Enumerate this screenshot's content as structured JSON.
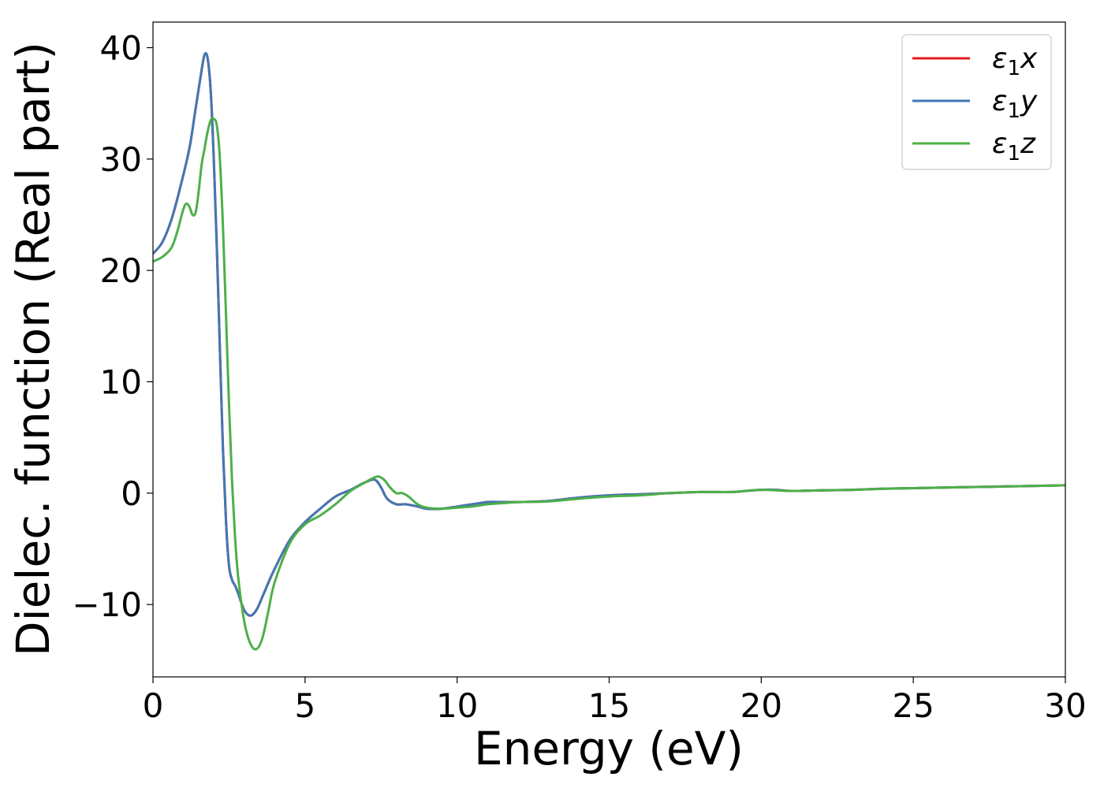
{
  "chart_data": {
    "type": "line",
    "title": "",
    "xlabel": "Energy (eV)",
    "ylabel": "Dielec. function (Real part)",
    "xlim": [
      0,
      30
    ],
    "ylim": [
      -16.5,
      42.3
    ],
    "xticks": [
      0,
      5,
      10,
      15,
      20,
      25,
      30
    ],
    "yticks": [
      -10,
      0,
      10,
      20,
      30,
      40
    ],
    "ytick_labels": [
      "−10",
      "0",
      "10",
      "20",
      "30",
      "40"
    ],
    "grid": false,
    "legend_position": "top-right",
    "series": [
      {
        "name": "ε1x",
        "legend_base": "ε",
        "legend_sub": "1",
        "legend_suffix": "x",
        "color": "#e41a1c",
        "x": [
          0,
          0.3,
          0.6,
          0.9,
          1.2,
          1.4,
          1.6,
          1.7,
          1.8,
          1.9,
          2.0,
          2.1,
          2.2,
          2.3,
          2.4,
          2.5,
          2.6,
          2.7,
          2.8,
          3.0,
          3.2,
          3.4,
          3.6,
          3.8,
          4.0,
          4.5,
          5.0,
          5.5,
          6.0,
          6.5,
          7.0,
          7.3,
          7.5,
          7.7,
          8.0,
          8.3,
          8.7,
          9.0,
          9.5,
          10.0,
          10.5,
          11.0,
          11.5,
          12.0,
          13.0,
          14.0,
          15.0,
          16.0,
          17.0,
          18.0,
          19.0,
          19.5,
          20.0,
          20.5,
          21.0,
          22.0,
          23.0,
          24.0,
          25.0,
          26.0,
          27.0,
          28.0,
          29.0,
          30.0
        ],
        "y": [
          21.5,
          22.5,
          24.5,
          27.5,
          31.0,
          34.5,
          38.0,
          39.4,
          39.0,
          36.0,
          30.0,
          22.0,
          13.0,
          4.0,
          -2.5,
          -6.5,
          -7.8,
          -8.3,
          -9.0,
          -10.5,
          -11.0,
          -10.5,
          -9.3,
          -8.0,
          -6.8,
          -4.2,
          -2.6,
          -1.4,
          -0.3,
          0.3,
          1.0,
          1.2,
          0.5,
          -0.5,
          -1.0,
          -1.0,
          -1.2,
          -1.4,
          -1.4,
          -1.2,
          -1.0,
          -0.8,
          -0.8,
          -0.8,
          -0.7,
          -0.4,
          -0.2,
          -0.1,
          0.0,
          0.1,
          0.1,
          0.2,
          0.3,
          0.3,
          0.2,
          0.25,
          0.3,
          0.4,
          0.45,
          0.5,
          0.55,
          0.6,
          0.65,
          0.7
        ]
      },
      {
        "name": "ε1y",
        "legend_base": "ε",
        "legend_sub": "1",
        "legend_suffix": "y",
        "color": "#4277b4",
        "x": [
          0,
          0.3,
          0.6,
          0.9,
          1.2,
          1.4,
          1.6,
          1.7,
          1.8,
          1.9,
          2.0,
          2.1,
          2.2,
          2.3,
          2.4,
          2.5,
          2.6,
          2.7,
          2.8,
          3.0,
          3.2,
          3.4,
          3.6,
          3.8,
          4.0,
          4.5,
          5.0,
          5.5,
          6.0,
          6.5,
          7.0,
          7.3,
          7.5,
          7.7,
          8.0,
          8.3,
          8.7,
          9.0,
          9.5,
          10.0,
          10.5,
          11.0,
          11.5,
          12.0,
          13.0,
          14.0,
          15.0,
          16.0,
          17.0,
          18.0,
          19.0,
          19.5,
          20.0,
          20.5,
          21.0,
          22.0,
          23.0,
          24.0,
          25.0,
          26.0,
          27.0,
          28.0,
          29.0,
          30.0
        ],
        "y": [
          21.5,
          22.5,
          24.5,
          27.5,
          31.0,
          34.5,
          38.0,
          39.4,
          39.0,
          36.0,
          30.0,
          22.0,
          13.0,
          4.0,
          -2.5,
          -6.5,
          -7.8,
          -8.3,
          -9.0,
          -10.5,
          -11.0,
          -10.5,
          -9.3,
          -8.0,
          -6.8,
          -4.2,
          -2.6,
          -1.4,
          -0.3,
          0.3,
          1.0,
          1.2,
          0.5,
          -0.5,
          -1.0,
          -1.0,
          -1.2,
          -1.4,
          -1.4,
          -1.2,
          -1.0,
          -0.8,
          -0.8,
          -0.8,
          -0.7,
          -0.4,
          -0.2,
          -0.1,
          0.0,
          0.1,
          0.1,
          0.2,
          0.3,
          0.3,
          0.2,
          0.25,
          0.3,
          0.4,
          0.45,
          0.5,
          0.55,
          0.6,
          0.65,
          0.7
        ]
      },
      {
        "name": "ε1z",
        "legend_base": "ε",
        "legend_sub": "1",
        "legend_suffix": "z",
        "color": "#4daf4a",
        "x": [
          0,
          0.3,
          0.6,
          0.8,
          1.0,
          1.1,
          1.2,
          1.3,
          1.4,
          1.5,
          1.6,
          1.7,
          1.8,
          1.9,
          2.0,
          2.1,
          2.2,
          2.3,
          2.4,
          2.5,
          2.6,
          2.7,
          2.8,
          3.0,
          3.2,
          3.4,
          3.6,
          3.8,
          4.0,
          4.5,
          5.0,
          5.5,
          6.0,
          6.5,
          7.0,
          7.2,
          7.4,
          7.6,
          7.8,
          8.0,
          8.2,
          8.4,
          8.7,
          9.0,
          9.5,
          10.0,
          10.5,
          11.0,
          11.5,
          12.0,
          13.0,
          14.0,
          15.0,
          16.0,
          17.0,
          18.0,
          19.0,
          19.5,
          20.0,
          20.5,
          21.0,
          22.0,
          23.0,
          24.0,
          25.0,
          26.0,
          27.0,
          28.0,
          29.0,
          30.0
        ],
        "y": [
          20.8,
          21.2,
          22.0,
          23.5,
          25.5,
          26.0,
          25.7,
          25.0,
          25.2,
          27.0,
          29.5,
          31.0,
          32.5,
          33.5,
          33.6,
          33.0,
          30.0,
          24.0,
          16.0,
          8.0,
          1.0,
          -4.0,
          -7.5,
          -11.5,
          -13.5,
          -14.0,
          -13.0,
          -10.5,
          -8.0,
          -4.5,
          -2.8,
          -2.0,
          -1.0,
          0.2,
          1.0,
          1.3,
          1.5,
          1.2,
          0.5,
          0.0,
          0.0,
          -0.3,
          -1.0,
          -1.3,
          -1.4,
          -1.3,
          -1.2,
          -1.0,
          -0.9,
          -0.8,
          -0.75,
          -0.5,
          -0.3,
          -0.2,
          0.0,
          0.1,
          0.1,
          0.2,
          0.3,
          0.25,
          0.2,
          0.25,
          0.3,
          0.4,
          0.45,
          0.5,
          0.55,
          0.6,
          0.65,
          0.7
        ]
      }
    ]
  }
}
